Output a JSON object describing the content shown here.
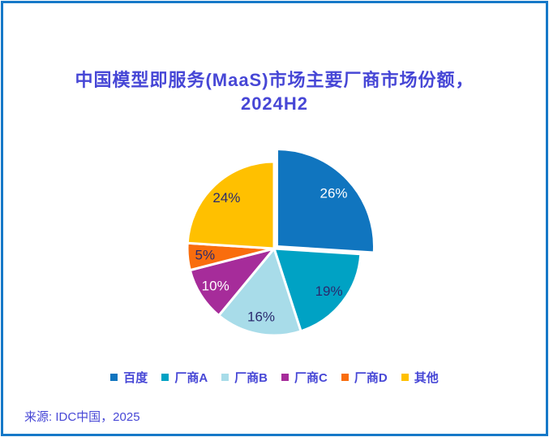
{
  "page": {
    "border_color": "#1578C8",
    "background_color": "#FFFFFF"
  },
  "title": {
    "line1": "中国模型即服务(MaaS)市场主要厂商市场份额，",
    "line2": "2024H2",
    "color": "#4747D6"
  },
  "source": {
    "text": "来源: IDC中国，2025"
  },
  "chart_data": {
    "type": "pie",
    "title": "中国模型即服务(MaaS)市场主要厂商市场份额，2024H2",
    "unit": "%",
    "start_angle": "12-o-clock, clockwise",
    "legend_position": "bottom",
    "label_style": "percent-inside-slice",
    "series": [
      {
        "name": "百度",
        "value": 26,
        "color": "#1075BF",
        "label": "26%",
        "label_color": "#FFFFFF",
        "emphasized": true
      },
      {
        "name": "厂商A",
        "value": 19,
        "color": "#00A2C4",
        "label": "19%",
        "label_color": "#2A2A6E",
        "emphasized": false
      },
      {
        "name": "厂商B",
        "value": 16,
        "color": "#A8DCE9",
        "label": "16%",
        "label_color": "#2A2A6E",
        "emphasized": false
      },
      {
        "name": "厂商C",
        "value": 10,
        "color": "#A62C9A",
        "label": "10%",
        "label_color": "#FFFFFF",
        "emphasized": false
      },
      {
        "name": "厂商D",
        "value": 5,
        "color": "#F96D0D",
        "label": "5%",
        "label_color": "#2A2A6E",
        "emphasized": false
      },
      {
        "name": "其他",
        "value": 24,
        "color": "#FFC000",
        "label": "24%",
        "label_color": "#2A2A6E",
        "emphasized": false
      }
    ]
  }
}
